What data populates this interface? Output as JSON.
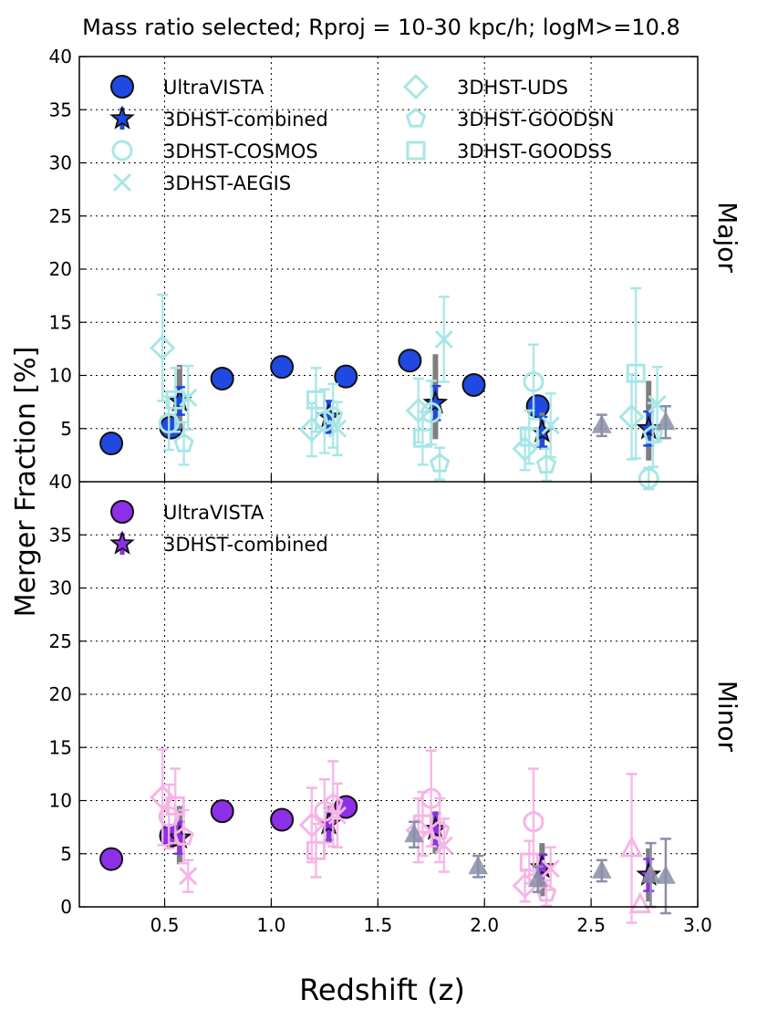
{
  "chart_data": {
    "type": "scatter",
    "title": "Mass ratio selected; Rproj = 10-30 kpc/h; logM>=10.8",
    "xlabel": "Redshift (z)",
    "ylabel": "Merger Fraction [%]",
    "xlim": [
      0.1,
      3.0
    ],
    "xticks": [
      "0.5",
      "1.0",
      "1.5",
      "2.0",
      "2.5",
      "3.0"
    ],
    "xtick_values": [
      0.5,
      1.0,
      1.5,
      2.0,
      2.5,
      3.0
    ],
    "grid": true,
    "panels": [
      {
        "panel_label": "Major",
        "ylim": [
          0,
          40
        ],
        "yticks": [
          "5",
          "10",
          "15",
          "20",
          "25",
          "30",
          "35",
          "40"
        ],
        "ytick_values": [
          5,
          10,
          15,
          20,
          25,
          30,
          35,
          40
        ],
        "legend_loc": "top-left",
        "legend": [
          {
            "label": "UltraVISTA",
            "marker": "circle",
            "color": "#1f49e0",
            "style": "solid"
          },
          {
            "label": "3DHST-combined",
            "marker": "star",
            "color": "#1f49e0",
            "style": "solid"
          },
          {
            "label": "3DHST-COSMOS",
            "marker": "circle",
            "color": "#a8e6e6",
            "style": "open"
          },
          {
            "label": "3DHST-AEGIS",
            "marker": "x",
            "color": "#a8e6e6",
            "style": "open"
          },
          {
            "label": "3DHST-UDS",
            "marker": "diamond",
            "color": "#a8e6e6",
            "style": "open"
          },
          {
            "label": "3DHST-GOODSN",
            "marker": "pentagon",
            "color": "#a8e6e6",
            "style": "open"
          },
          {
            "label": "3DHST-GOODSS",
            "marker": "square",
            "color": "#a8e6e6",
            "style": "open"
          }
        ],
        "series": [
          {
            "name": "UltraVISTA",
            "marker": "circle",
            "color": "#1f49e0",
            "style": "solid",
            "x": [
              0.25,
              0.53,
              0.77,
              1.05,
              1.35,
              1.65,
              1.95,
              2.25
            ],
            "y": [
              3.6,
              5.1,
              9.7,
              10.8,
              9.9,
              11.4,
              9.1,
              7.1
            ]
          },
          {
            "name": "3DHST-combined",
            "marker": "star",
            "color": "#1f49e0",
            "style": "solid",
            "x": [
              0.57,
              1.27,
              1.77,
              2.27,
              2.77
            ],
            "y": [
              7.6,
              6.1,
              7.4,
              4.7,
              5.0
            ],
            "err": [
              1.3,
              1.5,
              1.6,
              1.4,
              1.6
            ],
            "sys_lo": [
              5.0,
              4.5,
              4.0,
              3.0,
              2.0
            ],
            "sys_hi": [
              11.0,
              7.0,
              12.0,
              6.5,
              9.5
            ]
          },
          {
            "name": "3DHST-COSMOS",
            "marker": "circle",
            "color": "#a8e6e6",
            "style": "open",
            "x": [
              0.52,
              1.25,
              1.75,
              2.23,
              2.77
            ],
            "y": [
              5.5,
              5.7,
              6.5,
              9.4,
              0.3
            ],
            "err": [
              2.5,
              3.0,
              3.0,
              3.5,
              1.0
            ]
          },
          {
            "name": "3DHST-AEGIS",
            "marker": "x",
            "color": "#a8e6e6",
            "style": "open",
            "x": [
              0.61,
              1.31,
              1.81,
              2.31,
              2.81
            ],
            "y": [
              7.9,
              5.0,
              13.4,
              5.3,
              7.3
            ],
            "err": [
              3.0,
              2.5,
              4.0,
              3.0,
              3.5
            ]
          },
          {
            "name": "3DHST-UDS",
            "marker": "diamond",
            "color": "#a8e6e6",
            "style": "open",
            "x": [
              0.49,
              1.19,
              1.69,
              2.19,
              2.69
            ],
            "y": [
              12.6,
              4.9,
              6.7,
              3.1,
              6.1
            ],
            "err": [
              5.0,
              2.5,
              3.0,
              2.0,
              4.0
            ]
          },
          {
            "name": "3DHST-GOODSN",
            "marker": "pentagon",
            "color": "#a8e6e6",
            "style": "open",
            "x": [
              0.59,
              1.29,
              1.79,
              2.29,
              2.79
            ],
            "y": [
              3.6,
              6.2,
              1.7,
              1.6,
              4.4
            ],
            "err": [
              2.0,
              3.0,
              1.5,
              1.5,
              3.0
            ]
          },
          {
            "name": "3DHST-GOODSS",
            "marker": "square",
            "color": "#a8e6e6",
            "style": "open",
            "x": [
              0.55,
              1.21,
              1.71,
              2.21,
              2.71
            ],
            "y": [
              7.7,
              7.7,
              4.1,
              4.2,
              10.2
            ],
            "err": [
              3.0,
              3.0,
              2.5,
              2.5,
              8.0
            ]
          },
          {
            "name": "comparison",
            "marker": "triangle",
            "color": "#8a8fa8",
            "style": "solid",
            "x": [
              2.55,
              2.85
            ],
            "y": [
              5.3,
              5.6
            ],
            "err": [
              1.0,
              1.5
            ]
          }
        ]
      },
      {
        "panel_label": "Minor",
        "ylim": [
          0,
          40
        ],
        "yticks": [
          "0",
          "5",
          "10",
          "15",
          "20",
          "25",
          "30",
          "35",
          "40"
        ],
        "ytick_values": [
          0,
          5,
          10,
          15,
          20,
          25,
          30,
          35,
          40
        ],
        "legend_loc": "top-left",
        "legend": [
          {
            "label": "UltraVISTA",
            "marker": "circle",
            "color": "#8e2fe8",
            "style": "solid"
          },
          {
            "label": "3DHST-combined",
            "marker": "star",
            "color": "#8e2fe8",
            "style": "solid"
          }
        ],
        "series": [
          {
            "name": "UltraVISTA",
            "marker": "circle",
            "color": "#8e2fe8",
            "style": "solid",
            "x": [
              0.25,
              0.53,
              0.77,
              1.05,
              1.35
            ],
            "y": [
              4.5,
              6.7,
              9.0,
              8.2,
              9.4
            ]
          },
          {
            "name": "3DHST-combined",
            "marker": "star",
            "color": "#8e2fe8",
            "style": "solid",
            "x": [
              0.57,
              1.27,
              1.77,
              2.27,
              2.77
            ],
            "y": [
              6.5,
              7.8,
              7.3,
              3.7,
              3.0
            ],
            "err": [
              1.5,
              1.5,
              1.5,
              1.2,
              1.5
            ],
            "sys_lo": [
              4.0,
              6.0,
              5.0,
              1.0,
              0.5
            ],
            "sys_hi": [
              9.5,
              9.5,
              9.0,
              6.0,
              5.5
            ]
          },
          {
            "name": "3DHST-COSMOS",
            "marker": "circle",
            "color": "#f5b5e6",
            "style": "open",
            "x": [
              0.52,
              1.25,
              1.75,
              2.23
            ],
            "y": [
              8.5,
              9.0,
              10.2,
              8.0
            ],
            "err": [
              3.0,
              3.0,
              4.5,
              5.0
            ]
          },
          {
            "name": "3DHST-AEGIS",
            "marker": "x",
            "color": "#f5b5e6",
            "style": "open",
            "x": [
              0.61,
              1.31,
              1.81,
              2.31
            ],
            "y": [
              2.9,
              8.6,
              5.8,
              3.6
            ],
            "err": [
              1.5,
              3.0,
              2.5,
              2.0
            ]
          },
          {
            "name": "3DHST-UDS",
            "marker": "diamond",
            "color": "#f5b5e6",
            "style": "open",
            "x": [
              0.49,
              1.19,
              1.69,
              2.19
            ],
            "y": [
              10.3,
              7.7,
              7.2,
              2.0
            ],
            "err": [
              4.5,
              3.5,
              3.0,
              1.5
            ]
          },
          {
            "name": "3DHST-GOODSN",
            "marker": "pentagon",
            "color": "#f5b5e6",
            "style": "open",
            "x": [
              0.59,
              1.29,
              1.79,
              2.29
            ],
            "y": [
              6.6,
              9.7,
              7.2,
              1.3
            ],
            "err": [
              2.5,
              4.0,
              3.0,
              1.2
            ]
          },
          {
            "name": "3DHST-GOODSS",
            "marker": "square",
            "color": "#f5b5e6",
            "style": "open",
            "x": [
              0.55,
              1.21,
              1.71,
              2.21
            ],
            "y": [
              9.5,
              5.3,
              7.8,
              4.2
            ],
            "err": [
              3.5,
              2.5,
              3.0,
              2.0
            ]
          },
          {
            "name": "comparison-open",
            "marker": "triangle",
            "color": "#f5b5e6",
            "style": "open",
            "x": [
              2.69,
              2.73
            ],
            "y": [
              5.5,
              0.2
            ],
            "err": [
              7.0,
              0.0
            ]
          },
          {
            "name": "comparison",
            "marker": "triangle",
            "color": "#8a8fa8",
            "style": "solid",
            "x": [
              1.67,
              1.97,
              2.25,
              2.55,
              2.78,
              2.85
            ],
            "y": [
              6.8,
              3.8,
              2.6,
              3.4,
              3.0,
              2.9
            ],
            "err": [
              1.2,
              1.0,
              1.2,
              1.0,
              3.0,
              3.5
            ]
          }
        ]
      }
    ]
  }
}
